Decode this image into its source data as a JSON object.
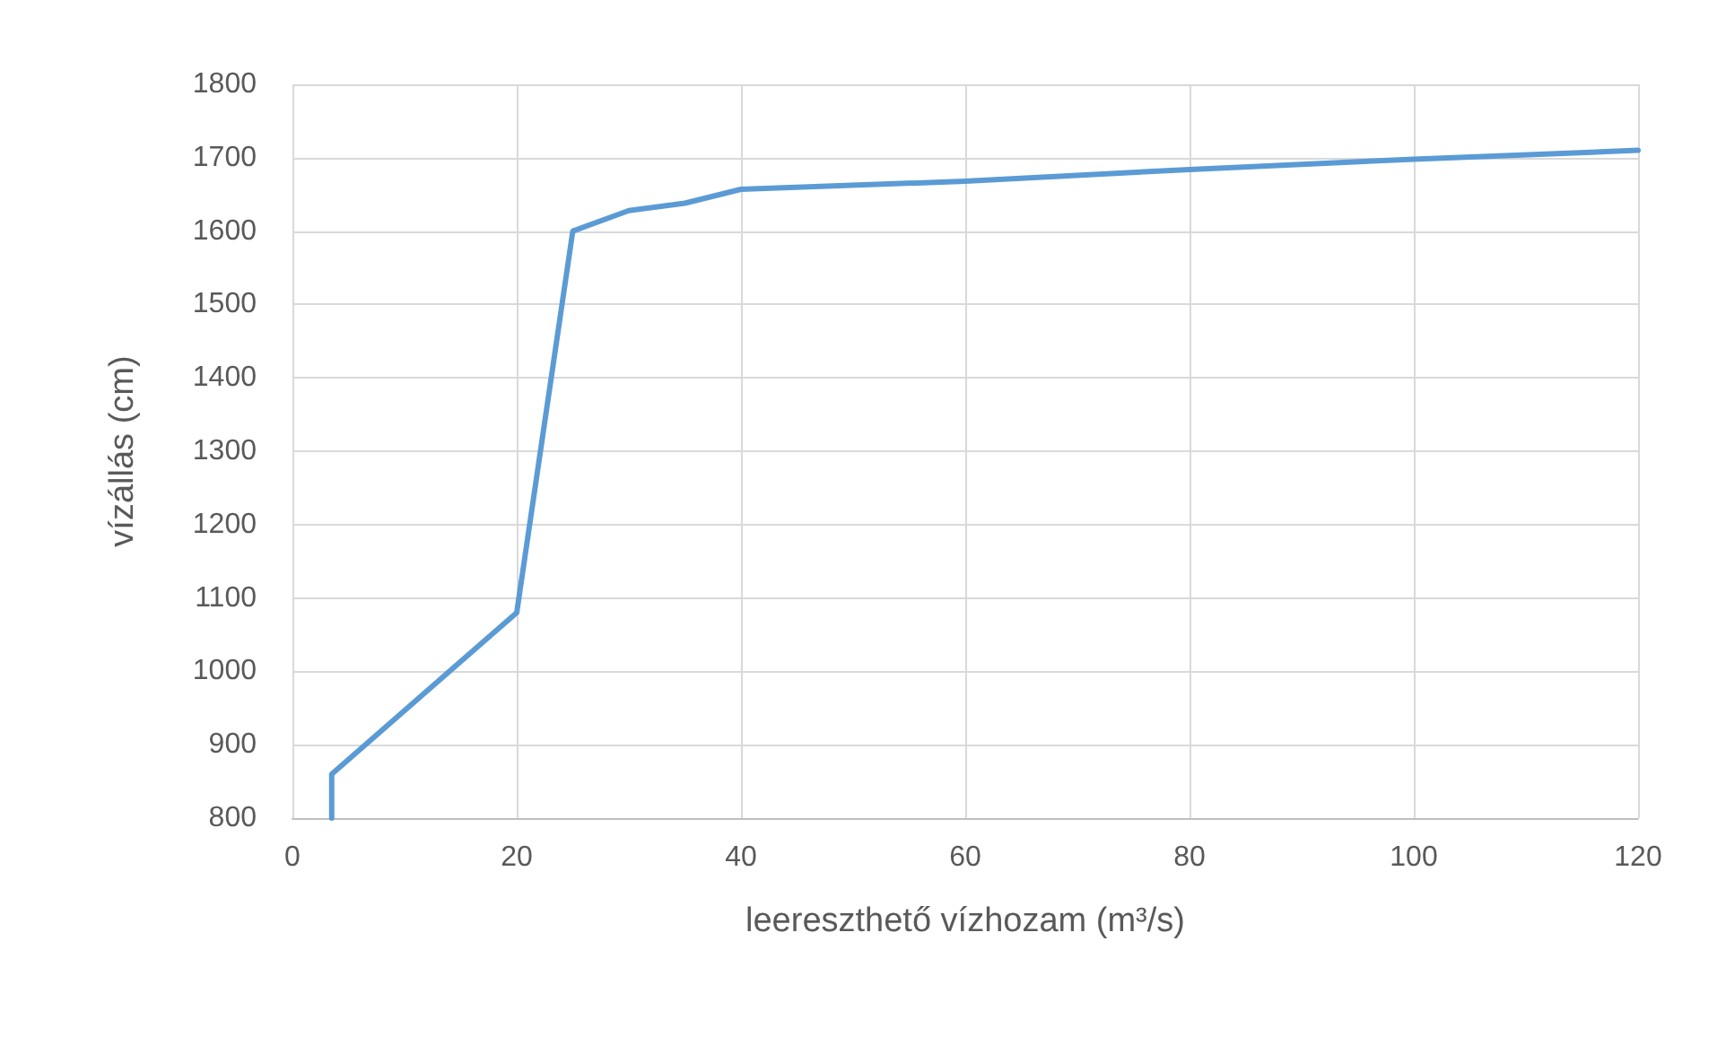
{
  "chart_data": {
    "type": "line",
    "xlabel": "leereszthető vízhozam (m³/s)",
    "ylabel": "vízállás (cm)",
    "x": [
      3.5,
      3.5,
      20,
      25,
      30,
      35,
      40,
      60,
      80,
      100,
      120
    ],
    "series": [
      {
        "color": "#5b9bd5",
        "values": [
          800,
          860,
          1080,
          1600,
          1628,
          1638,
          1657,
          1668,
          1684,
          1698,
          1710
        ]
      }
    ],
    "xlim": [
      0,
      120
    ],
    "xticks": [
      0,
      20,
      40,
      60,
      80,
      100,
      120
    ],
    "ylim": [
      800,
      1800
    ],
    "yticks": [
      800,
      900,
      1000,
      1100,
      1200,
      1300,
      1400,
      1500,
      1600,
      1700,
      1800
    ],
    "grid": true,
    "marker": "none",
    "line_style": "solid"
  }
}
